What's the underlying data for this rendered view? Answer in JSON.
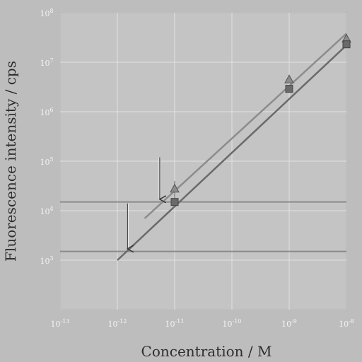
{
  "chart_data": {
    "type": "line",
    "xlabel": "Concentration / M",
    "ylabel": "Fluorescence intensity / cps",
    "xscale": "log",
    "yscale": "log",
    "xlim": [
      1e-13,
      1e-08
    ],
    "ylim": [
      100.0,
      100000000.0
    ],
    "grid": true,
    "x_ticks": [
      {
        "base": "10",
        "exp": "-13",
        "value": 1e-13
      },
      {
        "base": "10",
        "exp": "-12",
        "value": 1e-12
      },
      {
        "base": "10",
        "exp": "-11",
        "value": 1e-11
      },
      {
        "base": "10",
        "exp": "-10",
        "value": 1e-10
      },
      {
        "base": "10",
        "exp": "-9",
        "value": 1e-09
      },
      {
        "base": "10",
        "exp": "-8",
        "value": 1e-08
      }
    ],
    "y_ticks": [
      {
        "base": "10",
        "exp": "3",
        "value": 1000.0
      },
      {
        "base": "10",
        "exp": "4",
        "value": 10000.0
      },
      {
        "base": "10",
        "exp": "5",
        "value": 100000.0
      },
      {
        "base": "10",
        "exp": "6",
        "value": 1000000.0
      },
      {
        "base": "10",
        "exp": "7",
        "value": 10000000.0
      },
      {
        "base": "10",
        "exp": "8",
        "value": 100000000.0
      }
    ],
    "series": [
      {
        "marker": "triangle",
        "color": "#8c8c8c",
        "points": [
          {
            "x": 1e-11,
            "y": 28000,
            "err": 12000
          },
          {
            "x": 1e-09,
            "y": 4500000
          },
          {
            "x": 1e-08,
            "y": 30000000
          }
        ],
        "fit": [
          [
            3e-12,
            7000
          ],
          [
            1e-08,
            38000000
          ]
        ]
      },
      {
        "marker": "square",
        "color": "#6a6a6a",
        "points": [
          {
            "x": 1e-11,
            "y": 15000
          },
          {
            "x": 1e-09,
            "y": 2900000
          },
          {
            "x": 1e-08,
            "y": 23000000
          }
        ],
        "fit": [
          [
            1e-12,
            1000
          ],
          [
            1e-08,
            22000000
          ]
        ]
      }
    ],
    "hlines": [
      {
        "y": 15000,
        "color": "#8a8a8a"
      },
      {
        "y": 1500,
        "color": "#8a8a8a"
      }
    ],
    "arrows": [
      {
        "x": 5.5e-12,
        "y_from": 120000,
        "y_to": 17000
      },
      {
        "x": 1.5e-12,
        "y_from": 14000,
        "y_to": 1700
      }
    ]
  }
}
